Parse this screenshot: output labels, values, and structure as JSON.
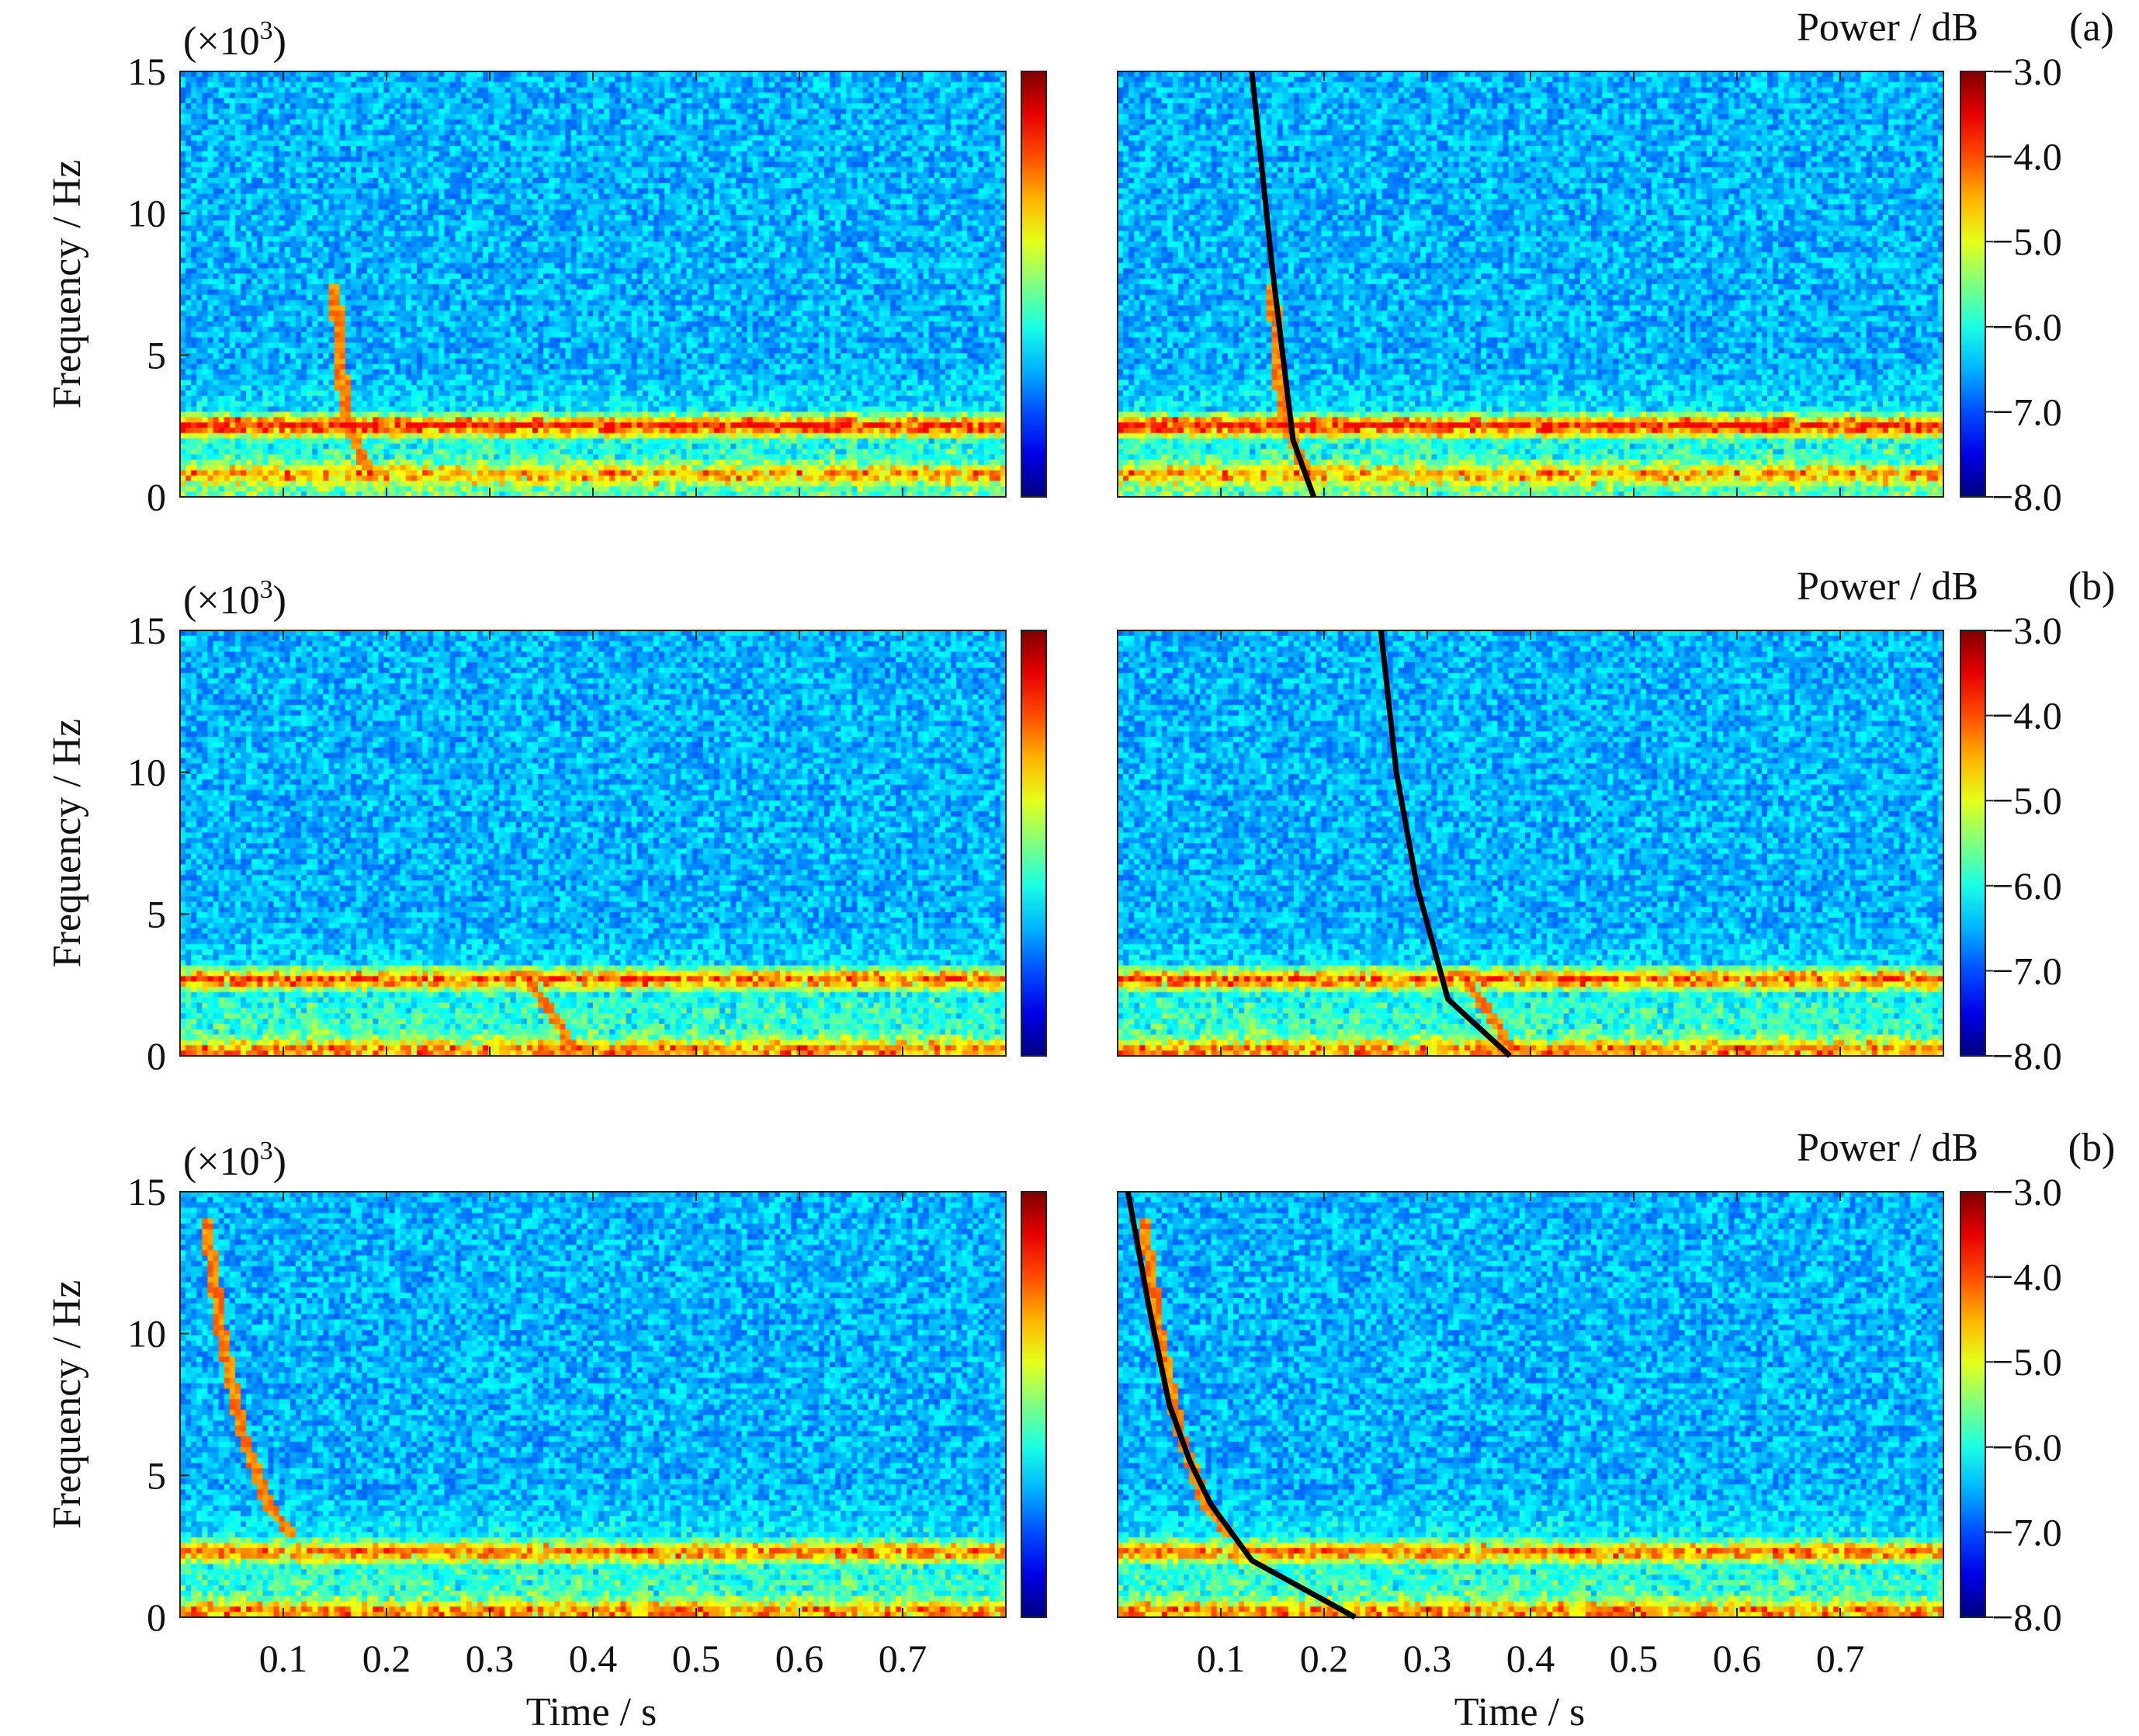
{
  "figure": {
    "xlabel": "Time / s",
    "ylabel": "Frequency / Hz",
    "y_multiplier_prefix": "(×10",
    "y_multiplier_exp": "3",
    "y_multiplier_suffix": ")",
    "colorbar_title": "Power / dB"
  },
  "chart_data": [
    {
      "type": "heatmap",
      "row": 0,
      "label": "(a)",
      "xlabel": "Time / s",
      "ylabel": "Frequency / Hz",
      "x_ticks": [
        0.1,
        0.2,
        0.3,
        0.4,
        0.5,
        0.6,
        0.7
      ],
      "y_ticks": [
        0,
        5,
        10,
        15
      ],
      "xlim": [
        0.0,
        0.8
      ],
      "ylim": [
        0,
        15
      ],
      "y_unit_scale": "×10^3",
      "colorbar": {
        "title": "Power / dB",
        "ticks": [
          "−3.0",
          "−4.0",
          "−5.0",
          "−6.0",
          "−7.0",
          "−8.0"
        ],
        "range": [
          -8.0,
          -3.0
        ]
      },
      "bands": [
        {
          "freq_khz": 2.5,
          "strength": 1.0
        },
        {
          "freq_khz": 0.8,
          "strength": 0.55
        }
      ],
      "chirp": {
        "t_khz": [
          [
            0.15,
            7.5
          ],
          [
            0.155,
            5.0
          ],
          [
            0.16,
            3.0
          ],
          [
            0.175,
            1.5
          ],
          [
            0.19,
            0.5
          ]
        ]
      },
      "fitted_curve": {
        "x": [
          0.13,
          0.14,
          0.15,
          0.16,
          0.17,
          0.18,
          0.19
        ],
        "y": [
          15.0,
          11.5,
          8.0,
          5.0,
          2.0,
          1.0,
          0.0
        ]
      }
    },
    {
      "type": "heatmap",
      "row": 1,
      "label": "(b)",
      "xlabel": "Time / s",
      "ylabel": "Frequency / Hz",
      "x_ticks": [
        0.1,
        0.2,
        0.3,
        0.4,
        0.5,
        0.6,
        0.7
      ],
      "y_ticks": [
        0,
        5,
        10,
        15
      ],
      "xlim": [
        0.0,
        0.8
      ],
      "ylim": [
        0,
        15
      ],
      "y_unit_scale": "×10^3",
      "colorbar": {
        "title": "Power / dB",
        "ticks": [
          "−3.0",
          "−4.0",
          "−5.0",
          "−6.0",
          "−7.0",
          "−8.0"
        ],
        "range": [
          -8.0,
          -3.0
        ]
      },
      "bands": [
        {
          "freq_khz": 2.7,
          "strength": 0.85
        },
        {
          "freq_khz": 0.2,
          "strength": 0.6
        }
      ],
      "chirp": {
        "t_khz": [
          [
            0.33,
            3.0
          ],
          [
            0.35,
            2.0
          ],
          [
            0.37,
            1.0
          ],
          [
            0.38,
            0.3
          ]
        ]
      },
      "fitted_curve": {
        "x": [
          0.255,
          0.27,
          0.29,
          0.32,
          0.35,
          0.38
        ],
        "y": [
          15.0,
          10.0,
          6.0,
          2.0,
          1.0,
          0.0
        ]
      }
    },
    {
      "type": "heatmap",
      "row": 2,
      "label": "(b)",
      "xlabel": "Time / s",
      "ylabel": "Frequency / Hz",
      "x_ticks": [
        0.1,
        0.2,
        0.3,
        0.4,
        0.5,
        0.6,
        0.7
      ],
      "y_ticks": [
        0,
        5,
        10,
        15
      ],
      "xlim": [
        0.0,
        0.8
      ],
      "ylim": [
        0,
        15
      ],
      "y_unit_scale": "×10^3",
      "colorbar": {
        "title": "Power / dB",
        "ticks": [
          "−3.0",
          "−4.0",
          "−5.0",
          "−6.0",
          "−7.0",
          "−8.0"
        ],
        "range": [
          -8.0,
          -3.0
        ]
      },
      "bands": [
        {
          "freq_khz": 2.3,
          "strength": 0.75
        },
        {
          "freq_khz": 0.2,
          "strength": 0.6
        }
      ],
      "chirp": {
        "t_khz": [
          [
            0.025,
            14.0
          ],
          [
            0.04,
            10.0
          ],
          [
            0.06,
            6.5
          ],
          [
            0.085,
            4.0
          ],
          [
            0.11,
            2.8
          ]
        ]
      },
      "fitted_curve": {
        "x": [
          0.01,
          0.03,
          0.05,
          0.07,
          0.09,
          0.13,
          0.23
        ],
        "y": [
          15.0,
          11.0,
          7.5,
          5.5,
          4.0,
          2.0,
          0.0
        ]
      }
    }
  ]
}
